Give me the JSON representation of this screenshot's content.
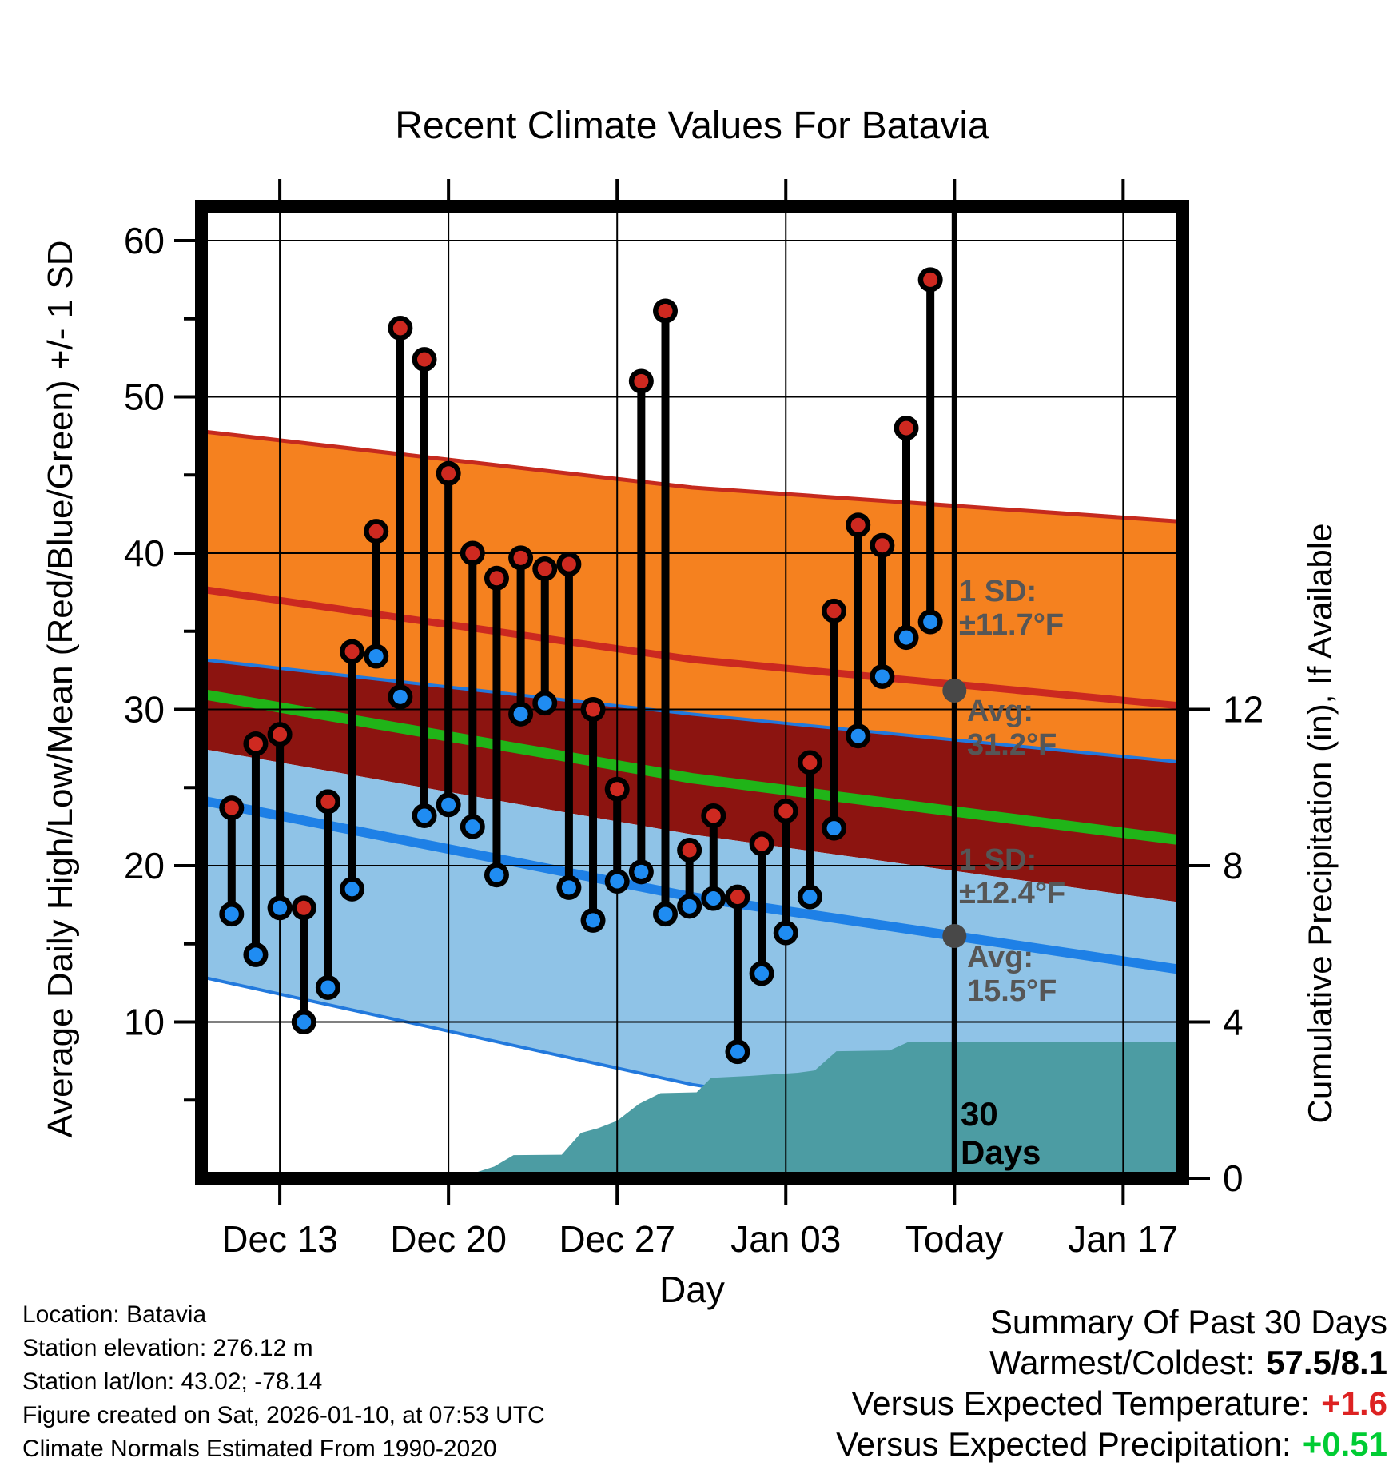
{
  "title": "Recent Climate Values For Batavia",
  "axes": {
    "left_label": "Average Daily High/Low/Mean (Red/Blue/Green) +/- 1 SD",
    "right_label": "Cumulative Precipitation (in), If Available",
    "x_label": "Day",
    "left_ticks": [
      10,
      20,
      30,
      40,
      50,
      60
    ],
    "left_minor_ticks": [
      5,
      15,
      25,
      35,
      45,
      55
    ],
    "right_ticks": [
      0,
      4,
      8,
      12
    ],
    "x_ticks": [
      {
        "label": "Dec 13",
        "day": 2
      },
      {
        "label": "Dec 20",
        "day": 9
      },
      {
        "label": "Dec 27",
        "day": 16
      },
      {
        "label": "Jan 03",
        "day": 23
      },
      {
        "label": "Today",
        "day": 30
      },
      {
        "label": "Jan 17",
        "day": 37
      }
    ],
    "today_day": 30
  },
  "annotations": {
    "high_sd": {
      "lines": [
        "1 SD:",
        "±11.7°F"
      ]
    },
    "high_avg": {
      "lines": [
        "Avg:",
        "31.2°F"
      ],
      "value": 31.2
    },
    "low_sd": {
      "lines": [
        "1 SD:",
        "±12.4°F"
      ]
    },
    "low_avg": {
      "lines": [
        "Avg:",
        "15.5°F"
      ],
      "value": 15.5
    },
    "window": {
      "lines": [
        "30",
        "Days"
      ]
    }
  },
  "info": [
    "Location: Batavia",
    "Station elevation: 276.12 m",
    "Station lat/lon: 43.02; -78.14",
    "Figure created on Sat, 2026-01-10, at 07:53 UTC",
    "Climate Normals Estimated From 1990-2020"
  ],
  "summary": {
    "title": "Summary Of Past 30 Days",
    "rows": [
      {
        "label": "Warmest/Coldest:",
        "value": "57.5/8.1",
        "color_class": "v-black"
      },
      {
        "label": "Versus Expected Temperature:",
        "value": "+1.6",
        "color_class": "v-red"
      },
      {
        "label": "Versus Expected Precipitation:",
        "value": "+0.51",
        "color_class": "v-green"
      }
    ]
  },
  "colors": {
    "high_band": "#F5811F",
    "overlap_band": "#8C1410",
    "low_band": "#8FC3E7",
    "avg_high_line": "#CB2920",
    "band_edge_red": "#C52A1E",
    "mean_line": "#20B418",
    "avg_low_line": "#1E80E6",
    "band_edge_blue": "#2279DD",
    "dot_high": "#CE2920",
    "dot_low": "#1F8CF2",
    "stem": "#000000",
    "precip_fill": "#4C9CA3",
    "annotation_gray": "#565656",
    "today_dot_gray": "#484848"
  },
  "chart_data": {
    "type": "line",
    "description": "Daily observed high/low temperatures (stems with red/blue dots), climate normal bands (mean high/low ± 1 SD), and cumulative precipitation (teal area, right axis).",
    "temp_axis_range": [
      0,
      62
    ],
    "precip_axis_range": [
      0,
      4.2
    ],
    "grid": true,
    "dates": [
      "Dec 11",
      "Dec 12",
      "Dec 13",
      "Dec 14",
      "Dec 15",
      "Dec 16",
      "Dec 17",
      "Dec 18",
      "Dec 19",
      "Dec 20",
      "Dec 21",
      "Dec 22",
      "Dec 23",
      "Dec 24",
      "Dec 25",
      "Dec 26",
      "Dec 27",
      "Dec 28",
      "Dec 29",
      "Dec 30",
      "Dec 31",
      "Jan 01",
      "Jan 02",
      "Jan 03",
      "Jan 04",
      "Jan 05",
      "Jan 06",
      "Jan 07",
      "Jan 08",
      "Jan 09"
    ],
    "series": [
      {
        "name": "daily_high_f",
        "values": [
          23.7,
          27.8,
          28.4,
          17.3,
          24.1,
          33.7,
          41.4,
          54.4,
          52.4,
          45.1,
          40.0,
          38.4,
          39.7,
          39.0,
          39.3,
          30.0,
          24.9,
          51.0,
          55.5,
          21.0,
          23.2,
          18.0,
          21.4,
          23.5,
          26.6,
          36.3,
          41.8,
          40.5,
          48.0,
          57.5
        ]
      },
      {
        "name": "daily_low_f",
        "values": [
          16.9,
          14.3,
          17.3,
          10.0,
          12.2,
          18.5,
          33.4,
          30.8,
          23.2,
          23.9,
          22.5,
          19.4,
          29.7,
          30.4,
          18.6,
          16.5,
          19.0,
          19.6,
          16.9,
          17.4,
          17.9,
          8.1,
          13.1,
          15.7,
          18.0,
          22.4,
          28.3,
          32.1,
          34.6,
          35.6
        ]
      }
    ],
    "normals": {
      "sample_days": [
        -1.3,
        19.1,
        39.6
      ],
      "high_plus_sd": [
        47.8,
        44.2,
        42.0
      ],
      "avg_high": [
        37.7,
        33.2,
        30.2
      ],
      "low_plus_sd": [
        33.2,
        29.7,
        26.6
      ],
      "mean": [
        31.0,
        25.6,
        21.6
      ],
      "high_minus_sd": [
        27.5,
        22.0,
        17.6
      ],
      "avg_low": [
        24.2,
        18.0,
        13.3
      ],
      "low_minus_sd": [
        12.9,
        6.0,
        1.2
      ]
    },
    "precip_cumulative_in": [
      [
        8.8,
        0.0
      ],
      [
        10.0,
        0.12
      ],
      [
        10.9,
        0.3
      ],
      [
        11.7,
        0.59
      ],
      [
        13.7,
        0.6
      ],
      [
        14.5,
        1.16
      ],
      [
        15.2,
        1.28
      ],
      [
        16.0,
        1.47
      ],
      [
        16.9,
        1.9
      ],
      [
        17.8,
        2.18
      ],
      [
        19.3,
        2.2
      ],
      [
        19.9,
        2.57
      ],
      [
        21.5,
        2.62
      ],
      [
        23.5,
        2.7
      ],
      [
        24.2,
        2.76
      ],
      [
        25.1,
        3.25
      ],
      [
        27.3,
        3.27
      ],
      [
        28.1,
        3.49
      ],
      [
        39.6,
        3.5
      ]
    ]
  }
}
